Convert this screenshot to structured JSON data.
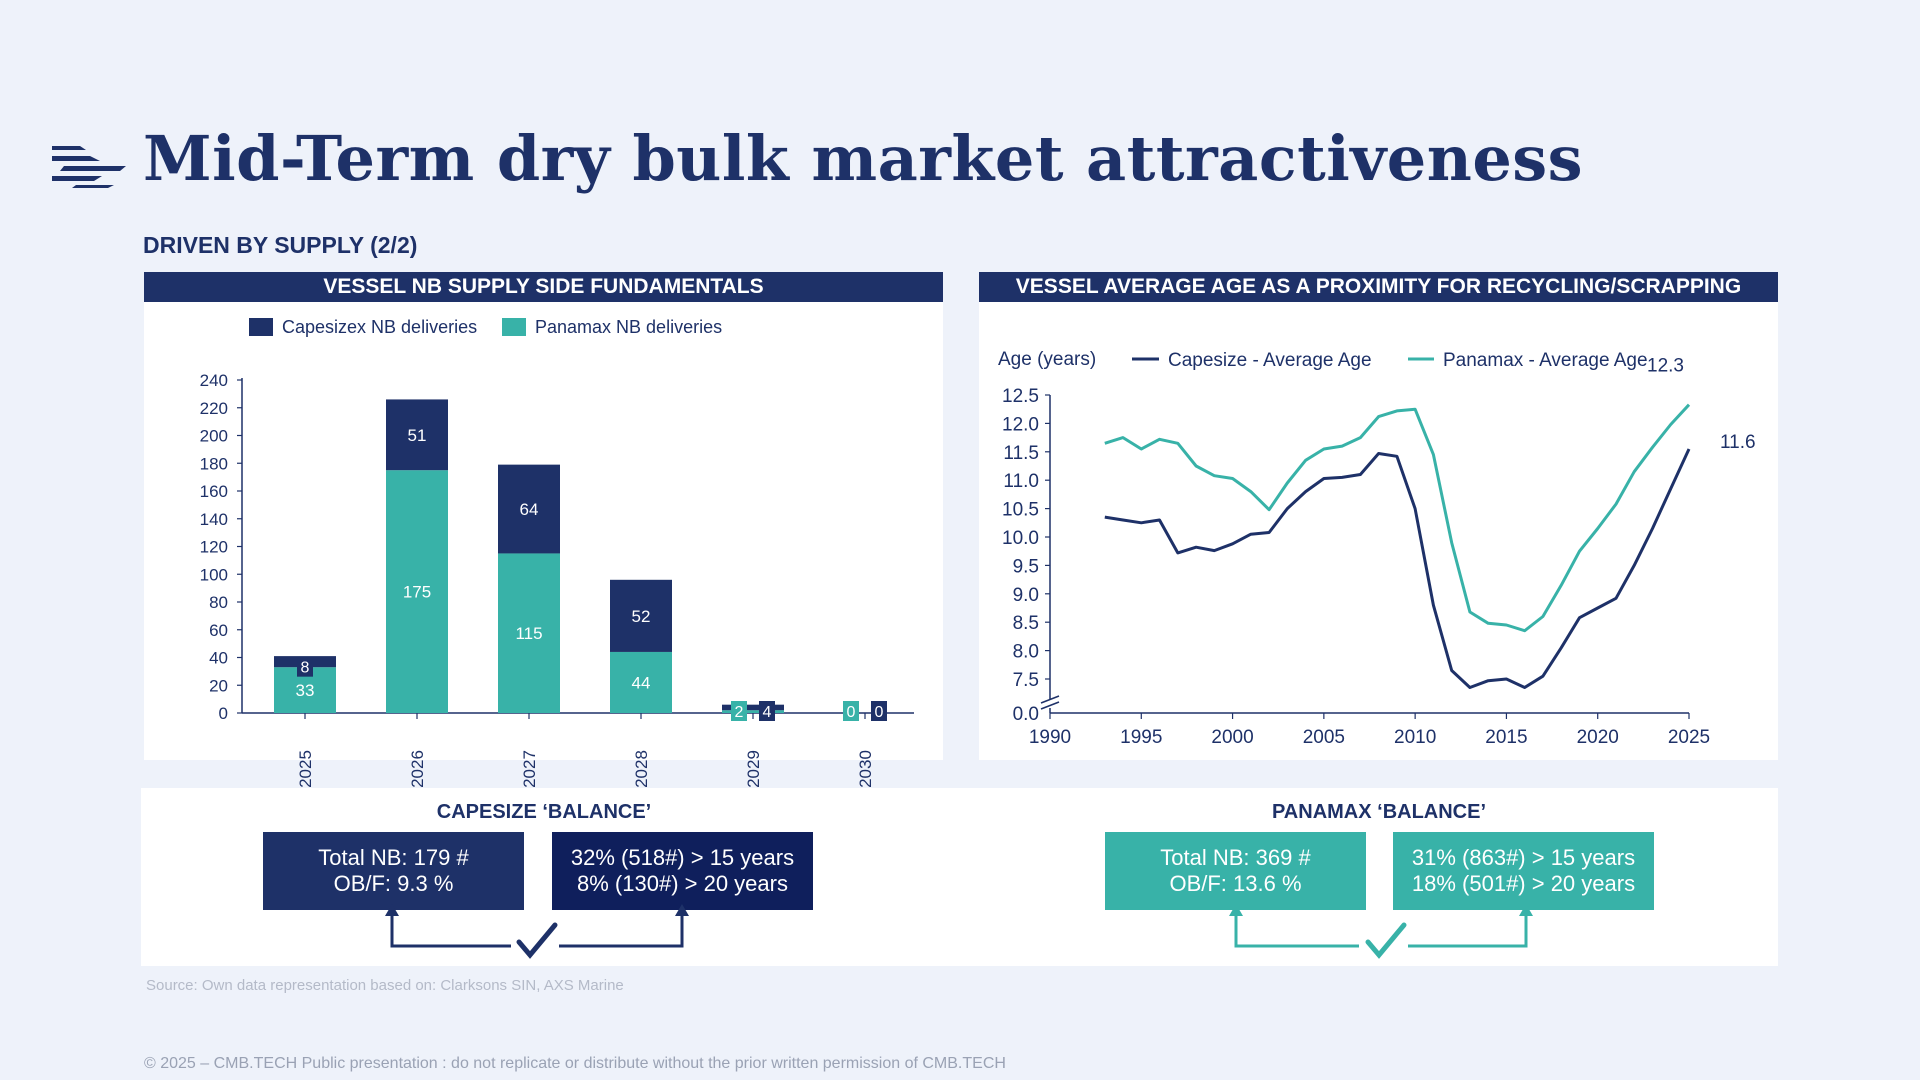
{
  "header": {
    "title": "Mid-Term dry bulk market attractiveness",
    "subtitle": "DRIVEN BY SUPPLY (2/2)"
  },
  "colors": {
    "navy": "#1e3168",
    "teal": "#38b2a8",
    "background": "#eef2fa"
  },
  "left_panel": {
    "heading": "VESSEL NB SUPPLY SIDE FUNDAMENTALS"
  },
  "right_panel": {
    "heading": "VESSEL AVERAGE AGE AS A PROXIMITY FOR RECYCLING/SCRAPPING"
  },
  "chart_data": [
    {
      "type": "bar",
      "stacked": true,
      "categories": [
        "2025",
        "2026",
        "2027",
        "2028",
        "2029",
        "2030"
      ],
      "series": [
        {
          "name": "Panamax NB deliveries",
          "color": "#38b2a8",
          "values": [
            33,
            175,
            115,
            44,
            2,
            0
          ]
        },
        {
          "name": "Capesizex NB deliveries",
          "color": "#1e3168",
          "values": [
            8,
            51,
            64,
            52,
            4,
            0
          ]
        }
      ],
      "legend": [
        "Capesizex NB deliveries",
        "Panamax NB deliveries"
      ],
      "ylim": [
        0,
        240
      ],
      "yticks": [
        0,
        20,
        40,
        60,
        80,
        100,
        120,
        140,
        160,
        180,
        200,
        220,
        240
      ],
      "xlabel": "",
      "ylabel": ""
    },
    {
      "type": "line",
      "ylabel": "Age (years)",
      "xlim": [
        1990,
        2025
      ],
      "xticks": [
        1990,
        1995,
        2000,
        2005,
        2010,
        2015,
        2020,
        2025
      ],
      "yticks": [
        7.5,
        8.0,
        8.5,
        9.0,
        9.5,
        10.0,
        10.5,
        11.0,
        11.5,
        12.0,
        12.5
      ],
      "ytick_labels": [
        "7.5",
        "8.0",
        "8.5",
        "9.0",
        "9.5",
        "10.0",
        "10.5",
        "11.0",
        "11.5",
        "12.0",
        "12.5"
      ],
      "axis_break_label": "0.0",
      "axis_break_value": 7.3,
      "ylim": [
        7.3,
        12.5
      ],
      "series": [
        {
          "name": "Capesize - Average Age",
          "color": "#1e3168",
          "end_label": "11.6",
          "x": [
            1993,
            1994,
            1995,
            1996,
            1997,
            1998,
            1999,
            2000,
            2001,
            2002,
            2003,
            2004,
            2005,
            2006,
            2007,
            2008,
            2009,
            2010,
            2011,
            2012,
            2013,
            2014,
            2015,
            2016,
            2017,
            2018,
            2019,
            2020,
            2021,
            2022,
            2023,
            2024,
            2025
          ],
          "y": [
            10.35,
            10.3,
            10.25,
            10.3,
            9.72,
            9.82,
            9.76,
            9.88,
            10.05,
            10.08,
            10.5,
            10.8,
            11.03,
            11.05,
            11.1,
            11.47,
            11.42,
            10.5,
            8.8,
            7.65,
            7.35,
            7.47,
            7.5,
            7.35,
            7.55,
            8.05,
            8.58,
            8.75,
            8.92,
            9.5,
            10.15,
            10.85,
            11.55
          ]
        },
        {
          "name": "Panamax - Average Age",
          "color": "#38b2a8",
          "end_label": "12.3",
          "x": [
            1993,
            1994,
            1995,
            1996,
            1997,
            1998,
            1999,
            2000,
            2001,
            2002,
            2003,
            2004,
            2005,
            2006,
            2007,
            2008,
            2009,
            2010,
            2011,
            2012,
            2013,
            2014,
            2015,
            2016,
            2017,
            2018,
            2019,
            2020,
            2021,
            2022,
            2023,
            2024,
            2025
          ],
          "y": [
            11.65,
            11.75,
            11.55,
            11.72,
            11.65,
            11.25,
            11.08,
            11.03,
            10.8,
            10.48,
            10.95,
            11.35,
            11.55,
            11.6,
            11.75,
            12.12,
            12.22,
            12.25,
            11.45,
            9.9,
            8.68,
            8.48,
            8.45,
            8.35,
            8.6,
            9.15,
            9.75,
            10.15,
            10.58,
            11.15,
            11.58,
            11.98,
            12.33
          ]
        }
      ]
    }
  ],
  "balance": {
    "capesize": {
      "title": "CAPESIZE ‘BALANCE’",
      "box1_line1": "Total NB: 179 #",
      "box1_line2": "OB/F: 9.3 %",
      "box2_line1": "32% (518#) > 15 years",
      "box2_line2": "8% (130#) > 20 years"
    },
    "panamax": {
      "title": "PANAMAX ‘BALANCE’",
      "box1_line1": "Total NB: 369 #",
      "box1_line2": "OB/F: 13.6 %",
      "box2_line1": "31% (863#) > 15 years",
      "box2_line2": "18% (501#) > 20 years"
    }
  },
  "source": "Source:  Own data representation based on: Clarksons SIN, AXS Marine",
  "footer": "© 2025 – CMB.TECH Public presentation : do not replicate or distribute without the prior written permission of CMB.TECH"
}
